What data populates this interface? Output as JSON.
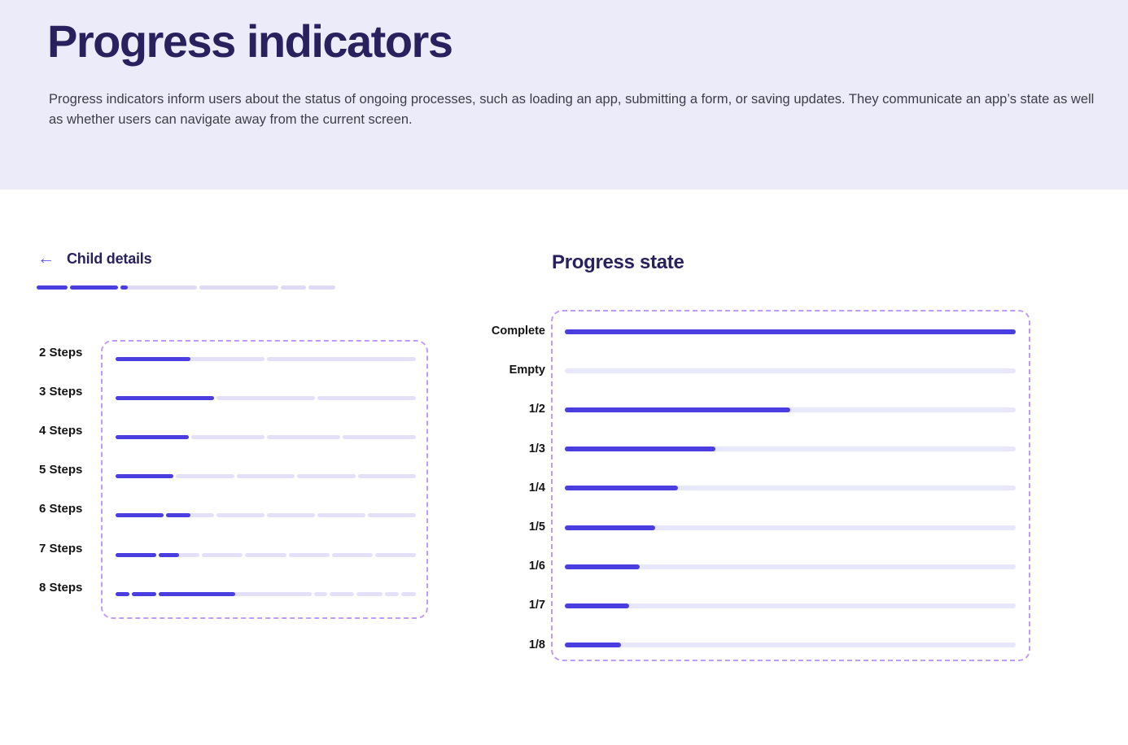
{
  "page": {
    "title": "Progress indicators",
    "description_line1": "Progress indicators inform users about the status of ongoing processes, such as loading an app, submitting a form, or saving updates. They communicate an app’s state as well",
    "description_line2": "as whether users can navigate away from the current screen."
  },
  "child_details": {
    "back_arrow": "←",
    "title": "Child details",
    "top_bar": {
      "segments_widths": [
        38,
        60,
        95,
        97,
        32,
        33
      ],
      "segments_fills": [
        1,
        1,
        0.095,
        0,
        0,
        0
      ]
    },
    "rows": [
      {
        "label": "2 Steps",
        "steps": 2,
        "fills": [
          0.5,
          0
        ]
      },
      {
        "label": "3 Steps",
        "steps": 3,
        "fills": [
          1,
          0,
          0
        ]
      },
      {
        "label": "4 Steps",
        "steps": 4,
        "fills": [
          1,
          0,
          0,
          0
        ]
      },
      {
        "label": "5 Steps",
        "steps": 5,
        "fills": [
          1,
          0,
          0,
          0,
          0
        ]
      },
      {
        "label": "6 Steps",
        "steps": 6,
        "fills": [
          1,
          0.5,
          0,
          0,
          0,
          0
        ]
      },
      {
        "label": "7 Steps",
        "steps": 7,
        "fills": [
          1,
          0.5,
          0,
          0,
          0,
          0,
          0
        ]
      },
      {
        "label": "8 Steps",
        "steps": 8,
        "widths": [
          17,
          30,
          186,
          16,
          30,
          31,
          17,
          18
        ],
        "fills": [
          1,
          1,
          0.5,
          0,
          0,
          0,
          0,
          0
        ]
      }
    ]
  },
  "progress_state": {
    "heading": "Progress state",
    "rows": [
      {
        "label": "Complete",
        "fill": 1
      },
      {
        "label": "Empty",
        "fill": 0
      },
      {
        "label": "1/2",
        "fill": 0.5
      },
      {
        "label": "1/3",
        "fill": 0.3333
      },
      {
        "label": "1/4",
        "fill": 0.25
      },
      {
        "label": "1/5",
        "fill": 0.2
      },
      {
        "label": "1/6",
        "fill": 0.1667
      },
      {
        "label": "1/7",
        "fill": 0.1429
      },
      {
        "label": "1/8",
        "fill": 0.125
      }
    ]
  },
  "colors": {
    "band_bg": "#ECEBFA",
    "heading": "#29215E",
    "body_text": "#3E3D47",
    "fill": "#4B3EE0",
    "track_left": "#E3E0F8",
    "track_top": "#DEDAF5",
    "track_right": "#E9E7FB",
    "dashed_border": "#BF9DF6",
    "arrow": "#6457E7"
  }
}
